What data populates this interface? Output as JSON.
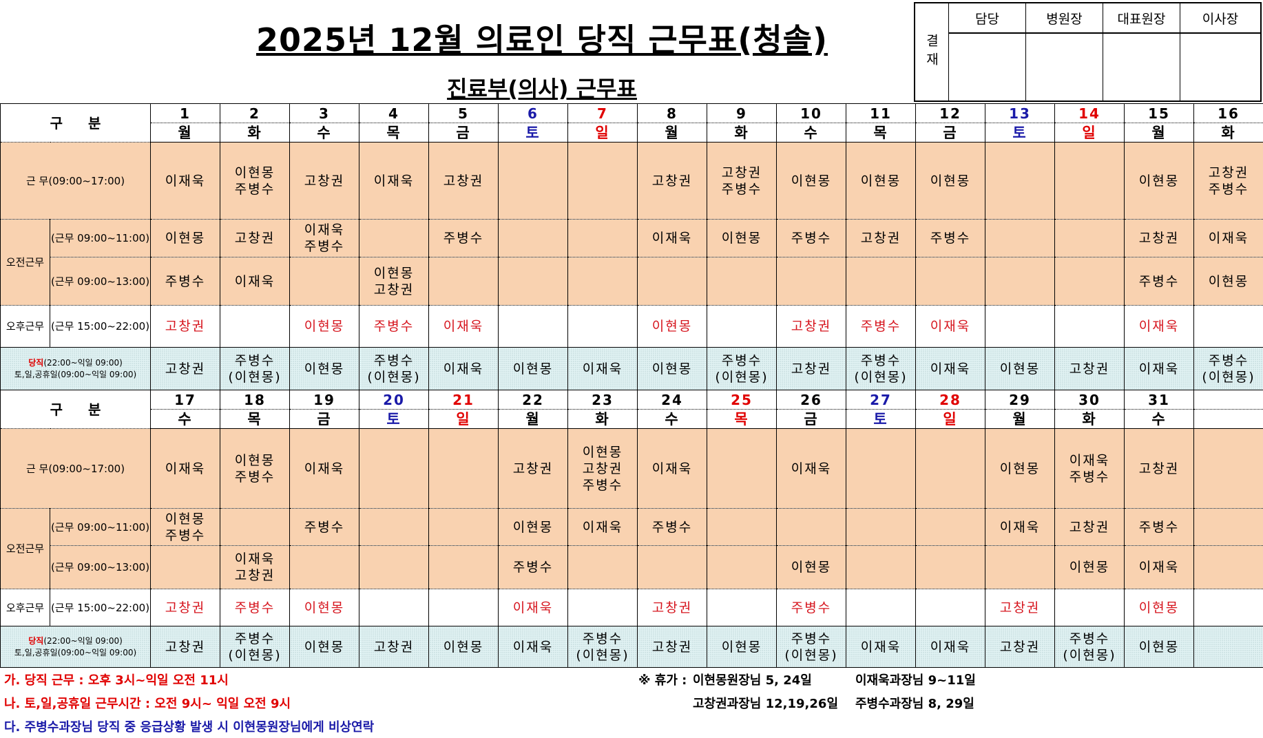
{
  "title": "2025년 12월 의료인 당직 근무표(청솔)",
  "subtitle": "진료부(의사) 근무표",
  "approval": {
    "label": "결재",
    "roles": [
      "담당",
      "병원장",
      "대표원장",
      "이사장"
    ]
  },
  "row_labels": {
    "gubun": "구 분",
    "work": "근      무(09:00~17:00)",
    "am_group": "오전근무",
    "am1": "(근무 09:00~11:00)",
    "am2": "(근무 09:00~13:00)",
    "pm_group": "오후근무",
    "pm": "(근무 15:00~22:00)",
    "duty_title": "당직",
    "duty_time": "(22:00~익일 09:00)",
    "duty_weekend": "토,일,공휴일(09:00~익일 09:00)"
  },
  "colors": {
    "saturday": "#1a1aa8",
    "holiday": "#e00000",
    "work_bg": "#f9d2b0",
    "duty_bg": "#e2f3f4",
    "pm_text": "#d6141d"
  },
  "halves": [
    {
      "days": [
        "1",
        "2",
        "3",
        "4",
        "5",
        "6",
        "7",
        "8",
        "9",
        "10",
        "11",
        "12",
        "13",
        "14",
        "15",
        "16"
      ],
      "weekdays": [
        "월",
        "화",
        "수",
        "목",
        "금",
        "토",
        "일",
        "월",
        "화",
        "수",
        "목",
        "금",
        "토",
        "일",
        "월",
        "화"
      ],
      "day_types": [
        "",
        "",
        "",
        "",
        "",
        "sat",
        "hol",
        "",
        "",
        "",
        "",
        "",
        "sat",
        "hol",
        "",
        ""
      ],
      "work": [
        "이재욱",
        "이현몽\n주병수",
        "고창권",
        "이재욱",
        "고창권",
        "",
        "",
        "고창권",
        "고창권\n주병수",
        "이현몽",
        "이현몽",
        "이현몽",
        "",
        "",
        "이현몽",
        "고창권\n주병수"
      ],
      "am1": [
        "이현몽",
        "고창권",
        "이재욱\n주병수",
        "",
        "주병수",
        "",
        "",
        "이재욱",
        "이현몽",
        "주병수",
        "고창권",
        "주병수",
        "",
        "",
        "고창권",
        "이재욱"
      ],
      "am2": [
        "주병수",
        "이재욱",
        "",
        "이현몽\n고창권",
        "",
        "",
        "",
        "",
        "",
        "",
        "",
        "",
        "",
        "",
        "주병수",
        "이현몽"
      ],
      "pm": [
        "고창권",
        "",
        "이현몽",
        "주병수",
        "이재욱",
        "",
        "",
        "이현몽",
        "",
        "고창권",
        "주병수",
        "이재욱",
        "",
        "",
        "이재욱",
        ""
      ],
      "duty": [
        "고창권",
        "주병수\n(이현몽)",
        "이현몽",
        "주병수\n(이현몽)",
        "이재욱",
        "이현몽",
        "이재욱",
        "이현몽",
        "주병수\n(이현몽)",
        "고창권",
        "주병수\n(이현몽)",
        "이재욱",
        "이현몽",
        "고창권",
        "이재욱",
        "주병수\n(이현몽)"
      ]
    },
    {
      "days": [
        "17",
        "18",
        "19",
        "20",
        "21",
        "22",
        "23",
        "24",
        "25",
        "26",
        "27",
        "28",
        "29",
        "30",
        "31",
        ""
      ],
      "weekdays": [
        "수",
        "목",
        "금",
        "토",
        "일",
        "월",
        "화",
        "수",
        "목",
        "금",
        "토",
        "일",
        "월",
        "화",
        "수",
        ""
      ],
      "day_types": [
        "",
        "",
        "",
        "sat",
        "hol",
        "",
        "",
        "",
        "hol",
        "",
        "sat",
        "hol",
        "",
        "",
        "",
        ""
      ],
      "work": [
        "이재욱",
        "이현몽\n주병수",
        "이재욱",
        "",
        "",
        "고창권",
        "이현몽\n고창권\n주병수",
        "이재욱",
        "",
        "이재욱",
        "",
        "",
        "이현몽",
        "이재욱\n주병수",
        "고창권",
        ""
      ],
      "am1": [
        "이현몽\n주병수",
        "",
        "주병수",
        "",
        "",
        "이현몽",
        "이재욱",
        "주병수",
        "",
        "",
        "",
        "",
        "이재욱",
        "고창권",
        "주병수",
        ""
      ],
      "am2": [
        "",
        "이재욱\n고창권",
        "",
        "",
        "",
        "주병수",
        "",
        "",
        "",
        "이현몽",
        "",
        "",
        "",
        "이현몽",
        "이재욱",
        ""
      ],
      "pm": [
        "고창권",
        "주병수",
        "이현몽",
        "",
        "",
        "이재욱",
        "",
        "고창권",
        "",
        "주병수",
        "",
        "",
        "고창권",
        "",
        "이현몽",
        ""
      ],
      "duty": [
        "고창권",
        "주병수\n(이현몽)",
        "이현몽",
        "고창권",
        "이현몽",
        "이재욱",
        "주병수\n(이현몽)",
        "고창권",
        "이현몽",
        "주병수\n(이현몽)",
        "이재욱",
        "이재욱",
        "고창권",
        "주병수\n(이현몽)",
        "이현몽",
        ""
      ]
    }
  ],
  "notes": [
    "가. 당직 근무 : 오후 3시~익일 오전 11시",
    "나. 토,일,공휴일 근무시간 : 오전 9시~ 익일 오전 9시",
    "다. 주병수과장님 당직 중 응급상황 발생 시 이현몽원장님에게 비상연락"
  ],
  "vacation": {
    "label": "※ 휴가 :",
    "items": [
      "이현몽원장님 5, 24일",
      "이재욱과장님 9~11일",
      "고창권과장님 12,19,26일",
      "주병수과장님 8, 29일"
    ]
  }
}
